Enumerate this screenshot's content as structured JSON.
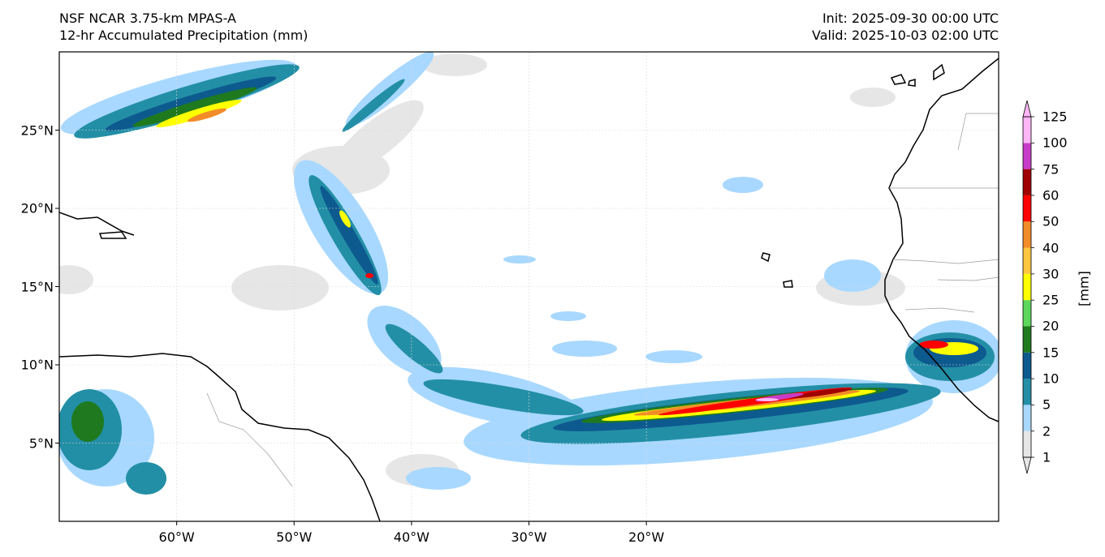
{
  "header": {
    "model_title": "NSF NCAR 3.75-km MPAS-A",
    "field_title": "12-hr Accumulated Precipitation (mm)",
    "init_text": "Init: 2025-09-30 00:00 UTC",
    "valid_text": "Valid: 2025-10-03 02:00 UTC"
  },
  "map": {
    "lon_range": [
      -70,
      10
    ],
    "lat_range": [
      0,
      30
    ],
    "lat_ticks": [
      {
        "value": 25,
        "label": "25°N"
      },
      {
        "value": 20,
        "label": "20°N"
      },
      {
        "value": 15,
        "label": "15°N"
      },
      {
        "value": 10,
        "label": "10°N"
      },
      {
        "value": 5,
        "label": "5°N"
      }
    ],
    "lon_ticks": [
      {
        "value": -60,
        "label": "60°W"
      },
      {
        "value": -50,
        "label": "50°W"
      },
      {
        "value": -40,
        "label": "40°W"
      },
      {
        "value": -30,
        "label": "30°W"
      },
      {
        "value": -20,
        "label": "20°W"
      }
    ],
    "gridlines": true,
    "coast_color": "#000000",
    "border_color": "#9a9a9a"
  },
  "colorbar": {
    "unit_label": "[mm]",
    "levels": [
      "1",
      "2",
      "5",
      "10",
      "15",
      "20",
      "25",
      "30",
      "40",
      "50",
      "60",
      "75",
      "100",
      "125"
    ],
    "colors": [
      "#e6e6e6",
      "#a8d8ff",
      "#238fa6",
      "#0d5a8f",
      "#1f7a1f",
      "#5cd65c",
      "#ffff00",
      "#ffc640",
      "#f28c28",
      "#ff0000",
      "#a00000",
      "#c83cc8",
      "#ffb6f7"
    ],
    "extend": "both"
  }
}
